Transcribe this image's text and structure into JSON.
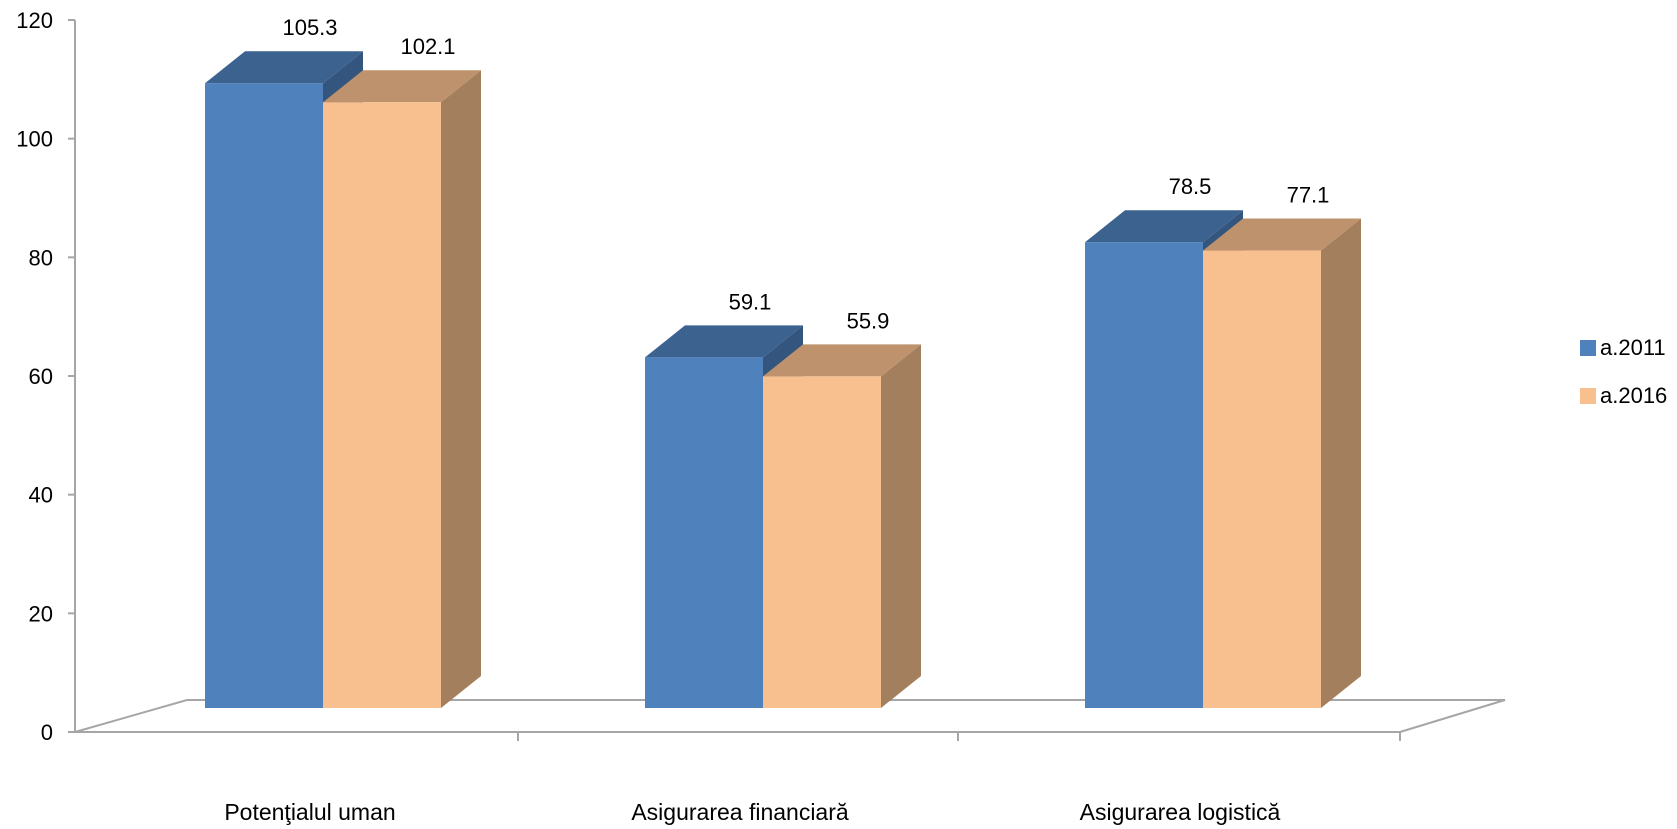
{
  "chart_data": {
    "type": "bar",
    "style": "3d-clustered-column",
    "categories": [
      "Potenţialul uman",
      "Asigurarea financiară",
      "Asigurarea logistică"
    ],
    "series": [
      {
        "name": "a.2011",
        "values": [
          105.3,
          59.1,
          78.5
        ],
        "color": "#4F81BD"
      },
      {
        "name": "a.2016",
        "values": [
          102.1,
          55.9,
          77.1
        ],
        "color": "#F9C08F"
      }
    ],
    "yticks": [
      0,
      20,
      40,
      60,
      80,
      100,
      120
    ],
    "ylim": [
      0,
      120
    ],
    "grid": false,
    "legend": "right",
    "title": "",
    "xlabel": "",
    "ylabel": ""
  }
}
